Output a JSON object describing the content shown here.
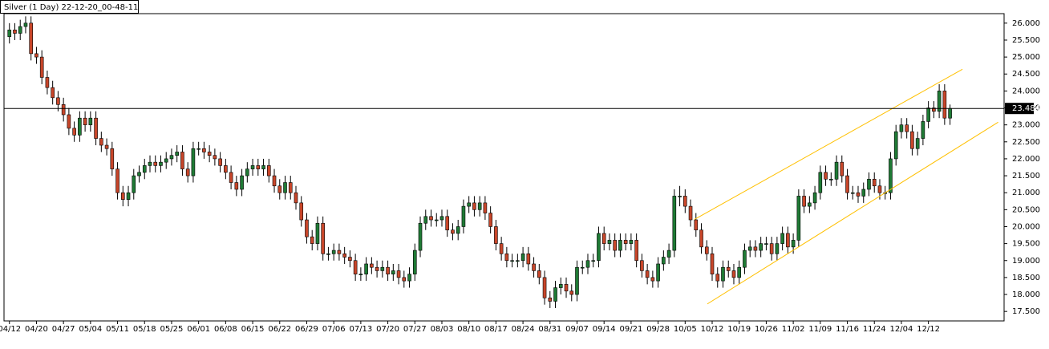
{
  "chart_data": {
    "type": "candlestick",
    "title": "Silver (1 Day) 22-12-20_00-48-11",
    "categories": [
      "04/12",
      null,
      null,
      null,
      null,
      "04/20",
      null,
      null,
      null,
      null,
      "04/27",
      null,
      null,
      null,
      null,
      "05/04",
      null,
      null,
      null,
      null,
      "05/11",
      null,
      null,
      null,
      null,
      "05/18",
      null,
      null,
      null,
      null,
      "05/25",
      null,
      null,
      null,
      null,
      "06/01",
      null,
      null,
      null,
      null,
      "06/08",
      null,
      null,
      null,
      null,
      "06/15",
      null,
      null,
      null,
      null,
      "06/22",
      null,
      null,
      null,
      null,
      "06/29",
      null,
      null,
      null,
      null,
      "07/06",
      null,
      null,
      null,
      null,
      "07/13",
      null,
      null,
      null,
      null,
      "07/20",
      null,
      null,
      null,
      null,
      "07/27",
      null,
      null,
      null,
      null,
      "08/03",
      null,
      null,
      null,
      null,
      "08/10",
      null,
      null,
      null,
      null,
      "08/17",
      null,
      null,
      null,
      null,
      "08/24",
      null,
      null,
      null,
      null,
      "08/31",
      null,
      null,
      null,
      null,
      "09/07",
      null,
      null,
      null,
      null,
      "09/14",
      null,
      null,
      null,
      null,
      "09/21",
      null,
      null,
      null,
      null,
      "09/28",
      null,
      null,
      null,
      null,
      "10/05",
      null,
      null,
      null,
      null,
      "10/12",
      null,
      null,
      null,
      null,
      "10/19",
      null,
      null,
      null,
      null,
      "10/26",
      null,
      null,
      null,
      null,
      "11/02",
      null,
      null,
      null,
      null,
      "11/09",
      null,
      null,
      null,
      null,
      "11/16",
      null,
      null,
      null,
      null,
      "11/24",
      null,
      null,
      null,
      null,
      "12/04",
      null,
      null,
      null,
      null,
      "12/12",
      null,
      null,
      null,
      null
    ],
    "values": [
      [
        25.6,
        26.0,
        25.4,
        25.8
      ],
      [
        25.8,
        26.0,
        25.5,
        25.7
      ],
      [
        25.7,
        26.1,
        25.5,
        25.9
      ],
      [
        25.9,
        26.2,
        25.7,
        26.0
      ],
      [
        26.0,
        26.2,
        24.9,
        25.1
      ],
      [
        25.1,
        25.3,
        24.8,
        25.0
      ],
      [
        25.0,
        25.2,
        24.2,
        24.4
      ],
      [
        24.4,
        24.6,
        23.9,
        24.1
      ],
      [
        24.1,
        24.3,
        23.6,
        23.8
      ],
      [
        23.8,
        24.0,
        23.4,
        23.6
      ],
      [
        23.6,
        23.8,
        23.1,
        23.3
      ],
      [
        23.3,
        23.5,
        22.7,
        22.9
      ],
      [
        22.9,
        23.1,
        22.5,
        22.7
      ],
      [
        22.7,
        23.4,
        22.5,
        23.2
      ],
      [
        23.2,
        23.4,
        22.8,
        23.0
      ],
      [
        23.0,
        23.4,
        22.8,
        23.2
      ],
      [
        23.2,
        23.4,
        22.4,
        22.6
      ],
      [
        22.6,
        22.8,
        22.2,
        22.4
      ],
      [
        22.4,
        22.6,
        22.1,
        22.3
      ],
      [
        22.3,
        22.5,
        21.5,
        21.7
      ],
      [
        21.7,
        21.9,
        20.8,
        21.0
      ],
      [
        21.0,
        21.2,
        20.6,
        20.8
      ],
      [
        20.8,
        21.2,
        20.6,
        21.0
      ],
      [
        21.0,
        21.7,
        20.8,
        21.5
      ],
      [
        21.5,
        21.8,
        21.3,
        21.6
      ],
      [
        21.6,
        22.0,
        21.4,
        21.8
      ],
      [
        21.8,
        22.1,
        21.6,
        21.9
      ],
      [
        21.9,
        22.1,
        21.6,
        21.8
      ],
      [
        21.8,
        22.1,
        21.6,
        21.9
      ],
      [
        21.9,
        22.2,
        21.7,
        22.0
      ],
      [
        22.0,
        22.3,
        21.8,
        22.1
      ],
      [
        22.1,
        22.4,
        21.9,
        22.2
      ],
      [
        22.2,
        22.4,
        21.5,
        21.7
      ],
      [
        21.7,
        21.9,
        21.3,
        21.5
      ],
      [
        21.5,
        22.5,
        21.3,
        22.3
      ],
      [
        22.3,
        22.5,
        22.1,
        22.3
      ],
      [
        22.3,
        22.5,
        22.0,
        22.2
      ],
      [
        22.2,
        22.4,
        21.9,
        22.1
      ],
      [
        22.1,
        22.3,
        21.8,
        22.0
      ],
      [
        22.0,
        22.2,
        21.6,
        21.8
      ],
      [
        21.8,
        22.0,
        21.4,
        21.6
      ],
      [
        21.6,
        21.8,
        21.1,
        21.3
      ],
      [
        21.3,
        21.5,
        20.9,
        21.1
      ],
      [
        21.1,
        21.7,
        20.9,
        21.5
      ],
      [
        21.5,
        21.9,
        21.3,
        21.7
      ],
      [
        21.7,
        22.0,
        21.5,
        21.8
      ],
      [
        21.8,
        22.0,
        21.5,
        21.7
      ],
      [
        21.7,
        22.0,
        21.5,
        21.8
      ],
      [
        21.8,
        22.0,
        21.3,
        21.5
      ],
      [
        21.5,
        21.7,
        21.0,
        21.2
      ],
      [
        21.2,
        21.4,
        20.8,
        21.0
      ],
      [
        21.0,
        21.5,
        20.8,
        21.3
      ],
      [
        21.3,
        21.5,
        20.8,
        21.0
      ],
      [
        21.0,
        21.2,
        20.5,
        20.7
      ],
      [
        20.7,
        20.9,
        20.0,
        20.2
      ],
      [
        20.2,
        20.4,
        19.5,
        19.7
      ],
      [
        19.7,
        19.9,
        19.3,
        19.5
      ],
      [
        19.5,
        20.3,
        19.3,
        20.1
      ],
      [
        20.1,
        20.3,
        19.0,
        19.2
      ],
      [
        19.2,
        19.4,
        19.0,
        19.2
      ],
      [
        19.2,
        19.5,
        19.0,
        19.3
      ],
      [
        19.3,
        19.5,
        19.0,
        19.2
      ],
      [
        19.2,
        19.4,
        18.9,
        19.1
      ],
      [
        19.1,
        19.3,
        18.8,
        19.0
      ],
      [
        19.0,
        19.2,
        18.4,
        18.6
      ],
      [
        18.6,
        18.8,
        18.4,
        18.6
      ],
      [
        18.6,
        19.1,
        18.4,
        18.9
      ],
      [
        18.9,
        19.1,
        18.6,
        18.8
      ],
      [
        18.8,
        19.0,
        18.5,
        18.7
      ],
      [
        18.7,
        19.0,
        18.5,
        18.8
      ],
      [
        18.8,
        19.0,
        18.4,
        18.6
      ],
      [
        18.6,
        18.9,
        18.4,
        18.7
      ],
      [
        18.7,
        18.9,
        18.3,
        18.5
      ],
      [
        18.5,
        18.7,
        18.2,
        18.4
      ],
      [
        18.4,
        18.8,
        18.2,
        18.6
      ],
      [
        18.6,
        19.5,
        18.4,
        19.3
      ],
      [
        19.3,
        20.3,
        19.1,
        20.1
      ],
      [
        20.1,
        20.5,
        19.9,
        20.3
      ],
      [
        20.3,
        20.5,
        20.0,
        20.2
      ],
      [
        20.2,
        20.4,
        20.0,
        20.2
      ],
      [
        20.2,
        20.5,
        20.0,
        20.3
      ],
      [
        20.3,
        20.5,
        19.7,
        19.9
      ],
      [
        19.9,
        20.1,
        19.6,
        19.8
      ],
      [
        19.8,
        20.2,
        19.6,
        20.0
      ],
      [
        20.0,
        20.8,
        19.8,
        20.6
      ],
      [
        20.6,
        20.9,
        20.4,
        20.7
      ],
      [
        20.7,
        20.9,
        20.3,
        20.5
      ],
      [
        20.5,
        20.9,
        20.3,
        20.7
      ],
      [
        20.7,
        20.9,
        20.2,
        20.4
      ],
      [
        20.4,
        20.6,
        19.8,
        20.0
      ],
      [
        20.0,
        20.2,
        19.3,
        19.5
      ],
      [
        19.5,
        19.7,
        19.0,
        19.2
      ],
      [
        19.2,
        19.4,
        18.8,
        19.0
      ],
      [
        19.0,
        19.2,
        18.8,
        19.0
      ],
      [
        19.0,
        19.2,
        18.8,
        19.0
      ],
      [
        19.0,
        19.4,
        18.8,
        19.2
      ],
      [
        19.2,
        19.4,
        18.7,
        18.9
      ],
      [
        18.9,
        19.1,
        18.5,
        18.7
      ],
      [
        18.7,
        18.9,
        18.3,
        18.5
      ],
      [
        18.5,
        18.7,
        17.7,
        17.9
      ],
      [
        17.9,
        18.1,
        17.6,
        17.8
      ],
      [
        17.8,
        18.4,
        17.6,
        18.2
      ],
      [
        18.2,
        18.5,
        18.0,
        18.3
      ],
      [
        18.3,
        18.5,
        17.9,
        18.1
      ],
      [
        18.1,
        18.3,
        17.8,
        18.0
      ],
      [
        18.0,
        19.0,
        17.8,
        18.8
      ],
      [
        18.8,
        19.0,
        18.6,
        18.8
      ],
      [
        18.8,
        19.2,
        18.6,
        19.0
      ],
      [
        19.0,
        19.2,
        18.8,
        19.0
      ],
      [
        19.0,
        20.0,
        18.8,
        19.8
      ],
      [
        19.8,
        20.0,
        19.3,
        19.5
      ],
      [
        19.5,
        19.8,
        19.3,
        19.6
      ],
      [
        19.6,
        19.8,
        19.1,
        19.3
      ],
      [
        19.3,
        19.8,
        19.1,
        19.6
      ],
      [
        19.6,
        19.8,
        19.3,
        19.5
      ],
      [
        19.5,
        19.8,
        19.3,
        19.6
      ],
      [
        19.6,
        19.8,
        18.8,
        19.0
      ],
      [
        19.0,
        19.2,
        18.5,
        18.7
      ],
      [
        18.7,
        18.9,
        18.3,
        18.5
      ],
      [
        18.5,
        18.7,
        18.2,
        18.4
      ],
      [
        18.4,
        19.1,
        18.2,
        18.9
      ],
      [
        18.9,
        19.3,
        18.7,
        19.1
      ],
      [
        19.1,
        19.5,
        18.9,
        19.3
      ],
      [
        19.3,
        21.1,
        19.1,
        20.9
      ],
      [
        20.9,
        21.2,
        20.6,
        20.9
      ],
      [
        20.9,
        21.1,
        20.4,
        20.6
      ],
      [
        20.6,
        20.8,
        20.0,
        20.2
      ],
      [
        20.2,
        20.4,
        19.7,
        19.9
      ],
      [
        19.9,
        20.1,
        19.2,
        19.4
      ],
      [
        19.4,
        19.6,
        19.0,
        19.2
      ],
      [
        19.2,
        19.4,
        18.4,
        18.6
      ],
      [
        18.6,
        18.8,
        18.2,
        18.4
      ],
      [
        18.4,
        19.0,
        18.2,
        18.8
      ],
      [
        18.8,
        19.0,
        18.5,
        18.7
      ],
      [
        18.7,
        18.9,
        18.3,
        18.5
      ],
      [
        18.5,
        19.0,
        18.3,
        18.8
      ],
      [
        18.8,
        19.5,
        18.6,
        19.3
      ],
      [
        19.3,
        19.6,
        19.1,
        19.4
      ],
      [
        19.4,
        19.6,
        19.1,
        19.3
      ],
      [
        19.3,
        19.7,
        19.1,
        19.5
      ],
      [
        19.5,
        19.7,
        19.3,
        19.5
      ],
      [
        19.5,
        19.7,
        19.0,
        19.2
      ],
      [
        19.2,
        19.7,
        19.0,
        19.5
      ],
      [
        19.5,
        20.0,
        19.3,
        19.8
      ],
      [
        19.8,
        20.0,
        19.2,
        19.4
      ],
      [
        19.4,
        19.8,
        19.2,
        19.6
      ],
      [
        19.6,
        21.1,
        19.4,
        20.9
      ],
      [
        20.9,
        21.1,
        20.4,
        20.6
      ],
      [
        20.6,
        20.9,
        20.4,
        20.7
      ],
      [
        20.7,
        21.2,
        20.5,
        21.0
      ],
      [
        21.0,
        21.8,
        20.8,
        21.6
      ],
      [
        21.6,
        21.8,
        21.2,
        21.4
      ],
      [
        21.4,
        21.6,
        21.2,
        21.4
      ],
      [
        21.4,
        22.1,
        21.2,
        21.9
      ],
      [
        21.9,
        22.1,
        21.3,
        21.5
      ],
      [
        21.5,
        21.7,
        20.8,
        21.0
      ],
      [
        21.0,
        21.2,
        20.8,
        21.0
      ],
      [
        21.0,
        21.2,
        20.7,
        20.9
      ],
      [
        20.9,
        21.3,
        20.7,
        21.1
      ],
      [
        21.1,
        21.6,
        20.9,
        21.4
      ],
      [
        21.4,
        21.6,
        21.0,
        21.2
      ],
      [
        21.2,
        21.4,
        20.8,
        21.0
      ],
      [
        21.0,
        21.2,
        20.8,
        21.0
      ],
      [
        21.0,
        22.2,
        20.8,
        22.0
      ],
      [
        22.0,
        23.0,
        21.8,
        22.8
      ],
      [
        22.8,
        23.2,
        22.6,
        23.0
      ],
      [
        23.0,
        23.2,
        22.6,
        22.8
      ],
      [
        22.8,
        23.0,
        22.1,
        22.3
      ],
      [
        22.3,
        22.8,
        22.1,
        22.6
      ],
      [
        22.6,
        23.3,
        22.4,
        23.1
      ],
      [
        23.1,
        23.7,
        22.9,
        23.5
      ],
      [
        23.5,
        23.7,
        23.2,
        23.4
      ],
      [
        23.4,
        24.2,
        23.2,
        24.0
      ],
      [
        24.0,
        24.2,
        23.0,
        23.2
      ],
      [
        23.2,
        23.6,
        23.0,
        23.484
      ]
    ],
    "up_color": "#1f7a35",
    "down_color": "#c8462a",
    "last_price": 23.484,
    "trendlines": [
      {
        "x": [
          126.7,
          176.3
        ],
        "y": [
          20.21,
          24.64
        ],
        "color": "#ffc000"
      },
      {
        "x": [
          129.1,
          182.9
        ],
        "y": [
          17.72,
          23.08
        ],
        "color": "#ffc000"
      }
    ],
    "xlim": [
      -1,
      184
    ],
    "ylim": [
      17.22,
      26.28
    ],
    "yticks": [
      {
        "value": 17.5,
        "label": "17.500"
      },
      {
        "value": 18,
        "label": "18.000"
      },
      {
        "value": 18.5,
        "label": "18.500"
      },
      {
        "value": 19,
        "label": "19.000"
      },
      {
        "value": 19.5,
        "label": "19.500"
      },
      {
        "value": 20,
        "label": "20.000"
      },
      {
        "value": 20.5,
        "label": "20.500"
      },
      {
        "value": 21,
        "label": "21.000"
      },
      {
        "value": 21.5,
        "label": "21.500"
      },
      {
        "value": 22,
        "label": "22.000"
      },
      {
        "value": 22.5,
        "label": "22.500"
      },
      {
        "value": 23,
        "label": "23.000"
      },
      {
        "value": 23.5,
        "label": "23.500"
      },
      {
        "value": 24,
        "label": "24.000"
      },
      {
        "value": 24.5,
        "label": "24.500"
      },
      {
        "value": 25,
        "label": "25.000"
      },
      {
        "value": 25.5,
        "label": "25.500"
      },
      {
        "value": 26,
        "label": "26.000"
      }
    ]
  }
}
